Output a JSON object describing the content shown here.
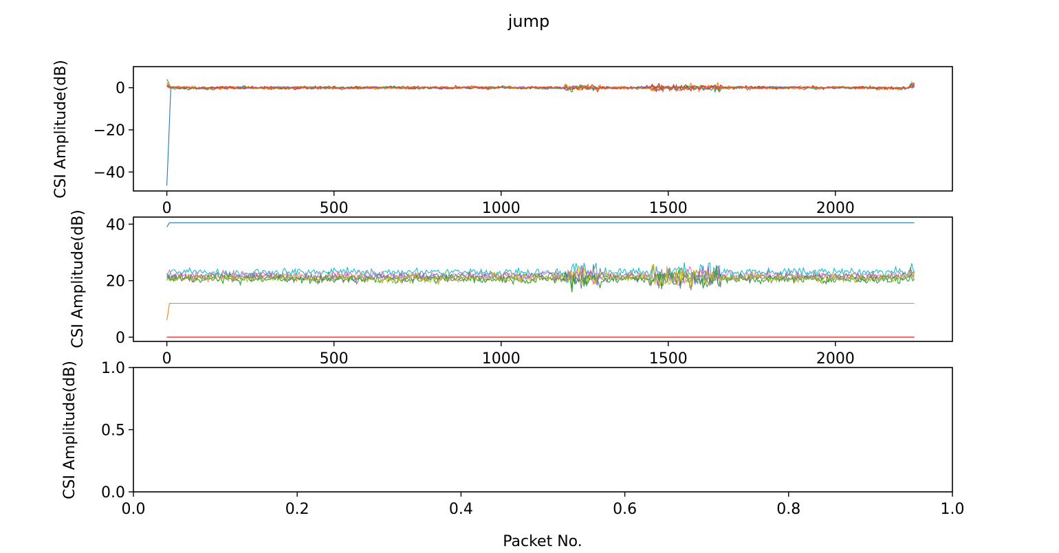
{
  "figure": {
    "title": "jump"
  },
  "chart_data": [
    {
      "type": "line",
      "ylabel": "CSI Amplitude(dB)",
      "xlim": [
        -100,
        2350
      ],
      "ylim": [
        -49,
        10
      ],
      "xticks": [
        0,
        500,
        1000,
        1500,
        2000
      ],
      "xtick_labels": [
        "0",
        "500",
        "1000",
        "1500",
        "2000"
      ],
      "yticks": [
        0,
        -20,
        -40
      ],
      "ytick_labels": [
        "0",
        "−20",
        "−40"
      ],
      "n_points": 2240,
      "series": [
        {
          "color": "#1f77b4",
          "base": 0.0,
          "noise": 0.3,
          "start": -46.5,
          "extra": "spike-down"
        },
        {
          "color": "#ff7f0e",
          "base": 0.0,
          "noise": 0.6,
          "start": 2.5
        },
        {
          "color": "#2ca02c",
          "base": 0.0,
          "noise": 0.5,
          "start": 4.0
        },
        {
          "color": "#d62728",
          "base": 0.0,
          "noise": 0.5,
          "start": 1.0
        },
        {
          "color": "#9467bd",
          "base": 0.0,
          "noise": 0.4,
          "start": 0.5
        },
        {
          "color": "#e36414",
          "base": 0.0,
          "noise": 0.5,
          "start": 1.5
        }
      ]
    },
    {
      "type": "line",
      "ylabel": "CSI Amplitude(dB)",
      "xlim": [
        -100,
        2350
      ],
      "ylim": [
        -1.5,
        42.5
      ],
      "xticks": [
        0,
        500,
        1000,
        1500,
        2000
      ],
      "xtick_labels": [
        "0",
        "500",
        "1000",
        "1500",
        "2000"
      ],
      "yticks": [
        0,
        20,
        40
      ],
      "ytick_labels": [
        "0",
        "20",
        "40"
      ],
      "n_points": 2240,
      "series": [
        {
          "color": "#1f77b4",
          "flat": 40.5,
          "start": 39.0
        },
        {
          "color": "#ff7f0e",
          "flat": 12.0,
          "start": 6.0
        },
        {
          "color": "#8c564b",
          "flat": 0.0,
          "start": 0.0
        },
        {
          "color": "#d62728",
          "flat": 0.0,
          "start": 0.0
        },
        {
          "color": "#17becf",
          "base": 23.0,
          "noise": 1.2
        },
        {
          "color": "#e377c2",
          "base": 22.0,
          "noise": 1.2
        },
        {
          "color": "#7f7f7f",
          "base": 21.5,
          "noise": 1.2
        },
        {
          "color": "#9467bd",
          "base": 21.0,
          "noise": 1.2
        },
        {
          "color": "#2ca02c",
          "base": 20.5,
          "noise": 1.2
        },
        {
          "color": "#bcbd22",
          "base": 21.0,
          "noise": 1.3
        }
      ]
    },
    {
      "type": "line",
      "ylabel": "CSI Amplitude(dB)",
      "xlabel": "Packet No.",
      "xlim": [
        0,
        1
      ],
      "ylim": [
        0,
        1
      ],
      "xticks": [
        0,
        0.2,
        0.4,
        0.6,
        0.8,
        1.0
      ],
      "xtick_labels": [
        "0.0",
        "0.2",
        "0.4",
        "0.6",
        "0.8",
        "1.0"
      ],
      "yticks": [
        0,
        0.5,
        1.0
      ],
      "ytick_labels": [
        "0.0",
        "0.5",
        "1.0"
      ],
      "series": []
    }
  ]
}
